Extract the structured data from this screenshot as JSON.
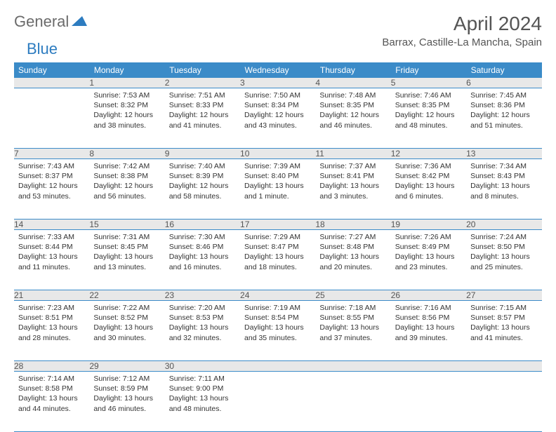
{
  "brand": {
    "part1": "General",
    "part2": "Blue"
  },
  "title": "April 2024",
  "location": "Barrax, Castille-La Mancha, Spain",
  "colors": {
    "header_bg": "#3b8bc8",
    "header_text": "#ffffff",
    "daynum_bg": "#e8e8e8",
    "border": "#3b8bc8",
    "brand_gray": "#6b6b6b",
    "brand_blue": "#2d7cc0"
  },
  "weekdays": [
    "Sunday",
    "Monday",
    "Tuesday",
    "Wednesday",
    "Thursday",
    "Friday",
    "Saturday"
  ],
  "weeks": [
    {
      "nums": [
        "",
        "1",
        "2",
        "3",
        "4",
        "5",
        "6"
      ],
      "cells": [
        null,
        {
          "sunrise": "7:53 AM",
          "sunset": "8:32 PM",
          "daylight": "12 hours and 38 minutes."
        },
        {
          "sunrise": "7:51 AM",
          "sunset": "8:33 PM",
          "daylight": "12 hours and 41 minutes."
        },
        {
          "sunrise": "7:50 AM",
          "sunset": "8:34 PM",
          "daylight": "12 hours and 43 minutes."
        },
        {
          "sunrise": "7:48 AM",
          "sunset": "8:35 PM",
          "daylight": "12 hours and 46 minutes."
        },
        {
          "sunrise": "7:46 AM",
          "sunset": "8:35 PM",
          "daylight": "12 hours and 48 minutes."
        },
        {
          "sunrise": "7:45 AM",
          "sunset": "8:36 PM",
          "daylight": "12 hours and 51 minutes."
        }
      ]
    },
    {
      "nums": [
        "7",
        "8",
        "9",
        "10",
        "11",
        "12",
        "13"
      ],
      "cells": [
        {
          "sunrise": "7:43 AM",
          "sunset": "8:37 PM",
          "daylight": "12 hours and 53 minutes."
        },
        {
          "sunrise": "7:42 AM",
          "sunset": "8:38 PM",
          "daylight": "12 hours and 56 minutes."
        },
        {
          "sunrise": "7:40 AM",
          "sunset": "8:39 PM",
          "daylight": "12 hours and 58 minutes."
        },
        {
          "sunrise": "7:39 AM",
          "sunset": "8:40 PM",
          "daylight": "13 hours and 1 minute."
        },
        {
          "sunrise": "7:37 AM",
          "sunset": "8:41 PM",
          "daylight": "13 hours and 3 minutes."
        },
        {
          "sunrise": "7:36 AM",
          "sunset": "8:42 PM",
          "daylight": "13 hours and 6 minutes."
        },
        {
          "sunrise": "7:34 AM",
          "sunset": "8:43 PM",
          "daylight": "13 hours and 8 minutes."
        }
      ]
    },
    {
      "nums": [
        "14",
        "15",
        "16",
        "17",
        "18",
        "19",
        "20"
      ],
      "cells": [
        {
          "sunrise": "7:33 AM",
          "sunset": "8:44 PM",
          "daylight": "13 hours and 11 minutes."
        },
        {
          "sunrise": "7:31 AM",
          "sunset": "8:45 PM",
          "daylight": "13 hours and 13 minutes."
        },
        {
          "sunrise": "7:30 AM",
          "sunset": "8:46 PM",
          "daylight": "13 hours and 16 minutes."
        },
        {
          "sunrise": "7:29 AM",
          "sunset": "8:47 PM",
          "daylight": "13 hours and 18 minutes."
        },
        {
          "sunrise": "7:27 AM",
          "sunset": "8:48 PM",
          "daylight": "13 hours and 20 minutes."
        },
        {
          "sunrise": "7:26 AM",
          "sunset": "8:49 PM",
          "daylight": "13 hours and 23 minutes."
        },
        {
          "sunrise": "7:24 AM",
          "sunset": "8:50 PM",
          "daylight": "13 hours and 25 minutes."
        }
      ]
    },
    {
      "nums": [
        "21",
        "22",
        "23",
        "24",
        "25",
        "26",
        "27"
      ],
      "cells": [
        {
          "sunrise": "7:23 AM",
          "sunset": "8:51 PM",
          "daylight": "13 hours and 28 minutes."
        },
        {
          "sunrise": "7:22 AM",
          "sunset": "8:52 PM",
          "daylight": "13 hours and 30 minutes."
        },
        {
          "sunrise": "7:20 AM",
          "sunset": "8:53 PM",
          "daylight": "13 hours and 32 minutes."
        },
        {
          "sunrise": "7:19 AM",
          "sunset": "8:54 PM",
          "daylight": "13 hours and 35 minutes."
        },
        {
          "sunrise": "7:18 AM",
          "sunset": "8:55 PM",
          "daylight": "13 hours and 37 minutes."
        },
        {
          "sunrise": "7:16 AM",
          "sunset": "8:56 PM",
          "daylight": "13 hours and 39 minutes."
        },
        {
          "sunrise": "7:15 AM",
          "sunset": "8:57 PM",
          "daylight": "13 hours and 41 minutes."
        }
      ]
    },
    {
      "nums": [
        "28",
        "29",
        "30",
        "",
        "",
        "",
        ""
      ],
      "cells": [
        {
          "sunrise": "7:14 AM",
          "sunset": "8:58 PM",
          "daylight": "13 hours and 44 minutes."
        },
        {
          "sunrise": "7:12 AM",
          "sunset": "8:59 PM",
          "daylight": "13 hours and 46 minutes."
        },
        {
          "sunrise": "7:11 AM",
          "sunset": "9:00 PM",
          "daylight": "13 hours and 48 minutes."
        },
        null,
        null,
        null,
        null
      ]
    }
  ],
  "labels": {
    "sunrise": "Sunrise:",
    "sunset": "Sunset:",
    "daylight": "Daylight:"
  }
}
